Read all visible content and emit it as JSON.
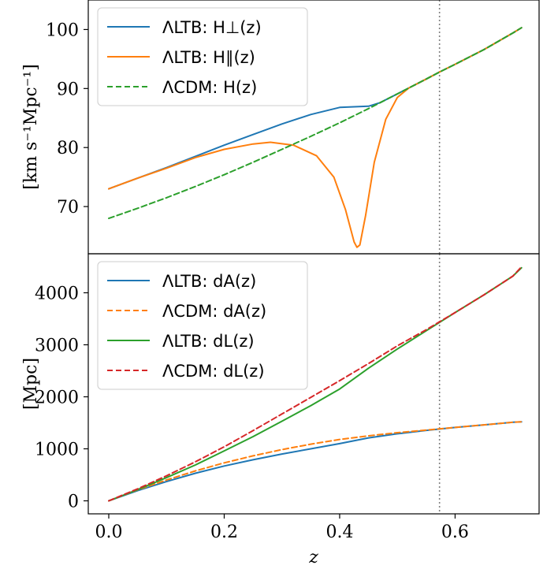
{
  "chart_data": [
    {
      "type": "line",
      "xlabel": "",
      "ylabel": "[km s⁻¹Mpc⁻¹]",
      "xlim": [
        -0.0355,
        0.7455
      ],
      "ylim": [
        62,
        105
      ],
      "yticks": [
        70,
        80,
        90,
        100
      ],
      "ytick_labels": [
        "70",
        "80",
        "90",
        "100"
      ],
      "grid": false,
      "legend_position": "top-left",
      "vline_x": 0.573,
      "series": [
        {
          "name": "ΛLTB: H⊥(z)",
          "style": "solid",
          "color": "#1f77b4",
          "x": [
            0.0,
            0.05,
            0.1,
            0.15,
            0.2,
            0.25,
            0.3,
            0.35,
            0.4,
            0.45,
            0.47,
            0.5,
            0.52,
            0.55,
            0.573,
            0.6,
            0.65,
            0.7,
            0.715
          ],
          "y": [
            73.0,
            74.8,
            76.6,
            78.5,
            80.4,
            82.2,
            84.0,
            85.6,
            86.8,
            87.0,
            87.6,
            89.1,
            90.1,
            91.6,
            92.8,
            94.1,
            96.6,
            99.4,
            100.3
          ]
        },
        {
          "name": "ΛLTB: H∥(z)",
          "style": "solid",
          "color": "#ff7f0e",
          "x": [
            0.0,
            0.05,
            0.1,
            0.15,
            0.2,
            0.25,
            0.28,
            0.32,
            0.36,
            0.39,
            0.41,
            0.425,
            0.43,
            0.435,
            0.445,
            0.46,
            0.48,
            0.5,
            0.52,
            0.55,
            0.573,
            0.6,
            0.65,
            0.7,
            0.715
          ],
          "y": [
            73.0,
            74.8,
            76.5,
            78.3,
            79.7,
            80.6,
            80.9,
            80.4,
            78.6,
            75.0,
            69.5,
            64.0,
            63.1,
            63.5,
            68.5,
            77.5,
            84.8,
            88.5,
            90.1,
            91.6,
            92.8,
            94.1,
            96.6,
            99.4,
            100.3
          ]
        },
        {
          "name": "ΛCDM: H(z)",
          "style": "dashed",
          "color": "#2ca02c",
          "x": [
            0.0,
            0.05,
            0.1,
            0.15,
            0.2,
            0.25,
            0.3,
            0.35,
            0.4,
            0.45,
            0.5,
            0.55,
            0.573,
            0.6,
            0.65,
            0.7,
            0.715
          ],
          "y": [
            68.0,
            69.7,
            71.5,
            73.4,
            75.4,
            77.5,
            79.7,
            81.9,
            84.2,
            86.6,
            89.1,
            91.6,
            92.8,
            94.1,
            96.6,
            99.4,
            100.3
          ]
        }
      ]
    },
    {
      "type": "line",
      "xlabel": "z",
      "ylabel": "[Mpc]",
      "xlim": [
        -0.0355,
        0.7455
      ],
      "ylim": [
        -250,
        4750
      ],
      "xticks": [
        0.0,
        0.2,
        0.4,
        0.6
      ],
      "xtick_labels": [
        "0.0",
        "0.2",
        "0.4",
        "0.6"
      ],
      "yticks": [
        0,
        1000,
        2000,
        3000,
        4000
      ],
      "ytick_labels": [
        "0",
        "1000",
        "2000",
        "3000",
        "4000"
      ],
      "grid": false,
      "legend_position": "top-left",
      "vline_x": 0.573,
      "series": [
        {
          "name": "ΛLTB: dA(z)",
          "style": "solid",
          "color": "#1f77b4",
          "x": [
            0.0,
            0.05,
            0.1,
            0.15,
            0.2,
            0.25,
            0.3,
            0.35,
            0.4,
            0.45,
            0.5,
            0.55,
            0.6,
            0.65,
            0.7,
            0.715
          ],
          "y": [
            0,
            195,
            370,
            530,
            670,
            790,
            900,
            1000,
            1100,
            1210,
            1290,
            1355,
            1410,
            1460,
            1510,
            1520
          ]
        },
        {
          "name": "ΛCDM: dA(z)",
          "style": "dashed",
          "color": "#ff7f0e",
          "x": [
            0.0,
            0.05,
            0.1,
            0.15,
            0.2,
            0.25,
            0.3,
            0.35,
            0.4,
            0.45,
            0.5,
            0.55,
            0.6,
            0.65,
            0.7,
            0.715
          ],
          "y": [
            0,
            210,
            400,
            575,
            730,
            865,
            985,
            1090,
            1180,
            1250,
            1310,
            1360,
            1410,
            1460,
            1510,
            1520
          ]
        },
        {
          "name": "ΛLTB: dL(z)",
          "style": "solid",
          "color": "#2ca02c",
          "x": [
            0.0,
            0.05,
            0.1,
            0.15,
            0.2,
            0.25,
            0.3,
            0.35,
            0.4,
            0.45,
            0.5,
            0.55,
            0.6,
            0.65,
            0.7,
            0.715
          ],
          "y": [
            0,
            215,
            445,
            690,
            960,
            1235,
            1530,
            1830,
            2150,
            2550,
            2920,
            3270,
            3620,
            3960,
            4320,
            4480
          ]
        },
        {
          "name": "ΛCDM: dL(z)",
          "style": "dashed",
          "color": "#d62728",
          "x": [
            0.0,
            0.05,
            0.1,
            0.15,
            0.2,
            0.25,
            0.3,
            0.35,
            0.4,
            0.45,
            0.5,
            0.55,
            0.6,
            0.65,
            0.7,
            0.715
          ],
          "y": [
            0,
            230,
            480,
            750,
            1040,
            1350,
            1670,
            1990,
            2310,
            2640,
            2980,
            3290,
            3620,
            3960,
            4320,
            4500
          ]
        }
      ]
    }
  ]
}
